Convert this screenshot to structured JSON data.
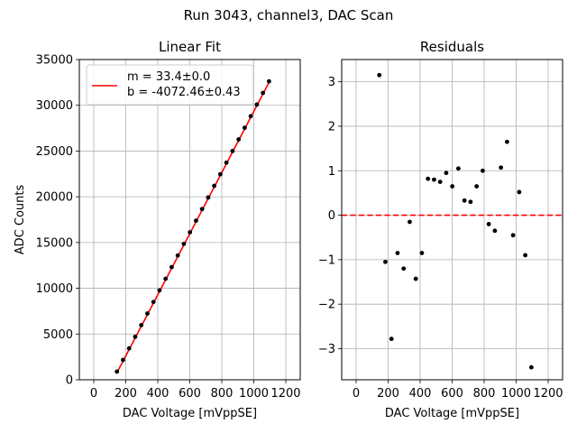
{
  "suptitle": "Run 3043, channel3, DAC Scan",
  "chart_data": [
    {
      "type": "scatter",
      "title": "Linear Fit",
      "xlabel": "DAC Voltage [mVppSE]",
      "ylabel": "ADC Counts",
      "xlim": [
        -90,
        1290
      ],
      "ylim": [
        0,
        35000
      ],
      "xticks": [
        0,
        200,
        400,
        600,
        800,
        1000,
        1200
      ],
      "yticks": [
        0,
        5000,
        10000,
        15000,
        20000,
        25000,
        30000,
        35000
      ],
      "grid": true,
      "series": [
        {
          "kind": "points",
          "color": "#000000",
          "x": [
            145,
            183,
            221,
            259,
            297,
            335,
            373,
            411,
            449,
            487,
            525,
            563,
            601,
            639,
            677,
            715,
            753,
            791,
            829,
            867,
            905,
            943,
            981,
            1019,
            1057,
            1095
          ],
          "y": [
            893,
            2162,
            3431,
            4700,
            5969,
            7238,
            8507,
            9776,
            11045,
            12314,
            13583,
            14852,
            16121,
            17390,
            18659,
            19928,
            21197,
            22466,
            23735,
            25004,
            26273,
            27542,
            28811,
            30080,
            31349,
            32618
          ]
        },
        {
          "kind": "line",
          "name": "m = 33.4±0.0\nb = -4072.46±0.43",
          "color": "#ff0000",
          "x": [
            145,
            1095
          ],
          "y": [
            771,
            32501
          ]
        }
      ],
      "legend": {
        "placement": "upper-left",
        "lines": [
          "m = 33.4±0.0",
          "b = -4072.46±0.43"
        ],
        "color": "#ff0000"
      }
    },
    {
      "type": "scatter",
      "title": "Residuals",
      "xlabel": "DAC Voltage [mVppSE]",
      "ylabel": "",
      "xlim": [
        -90,
        1290
      ],
      "ylim": [
        -3.7,
        3.5
      ],
      "xticks": [
        0,
        200,
        400,
        600,
        800,
        1000,
        1200
      ],
      "yticks": [
        -3,
        -2,
        -1,
        0,
        1,
        2,
        3
      ],
      "grid": true,
      "reference_line": {
        "y": 0,
        "color": "#ff0000",
        "style": "dashed"
      },
      "series": [
        {
          "kind": "points",
          "color": "#000000",
          "x": [
            145,
            183,
            221,
            259,
            297,
            335,
            373,
            411,
            449,
            487,
            525,
            563,
            601,
            639,
            677,
            715,
            753,
            791,
            829,
            867,
            905,
            943,
            981,
            1019,
            1057,
            1095
          ],
          "y": [
            3.15,
            -1.05,
            -2.78,
            -0.85,
            -1.2,
            -0.15,
            -1.43,
            -0.85,
            0.82,
            0.8,
            0.75,
            0.95,
            0.65,
            1.05,
            0.33,
            0.3,
            0.65,
            1.0,
            -0.2,
            -0.35,
            1.07,
            1.65,
            -0.45,
            0.52,
            -0.9,
            -3.42
          ]
        }
      ]
    }
  ]
}
